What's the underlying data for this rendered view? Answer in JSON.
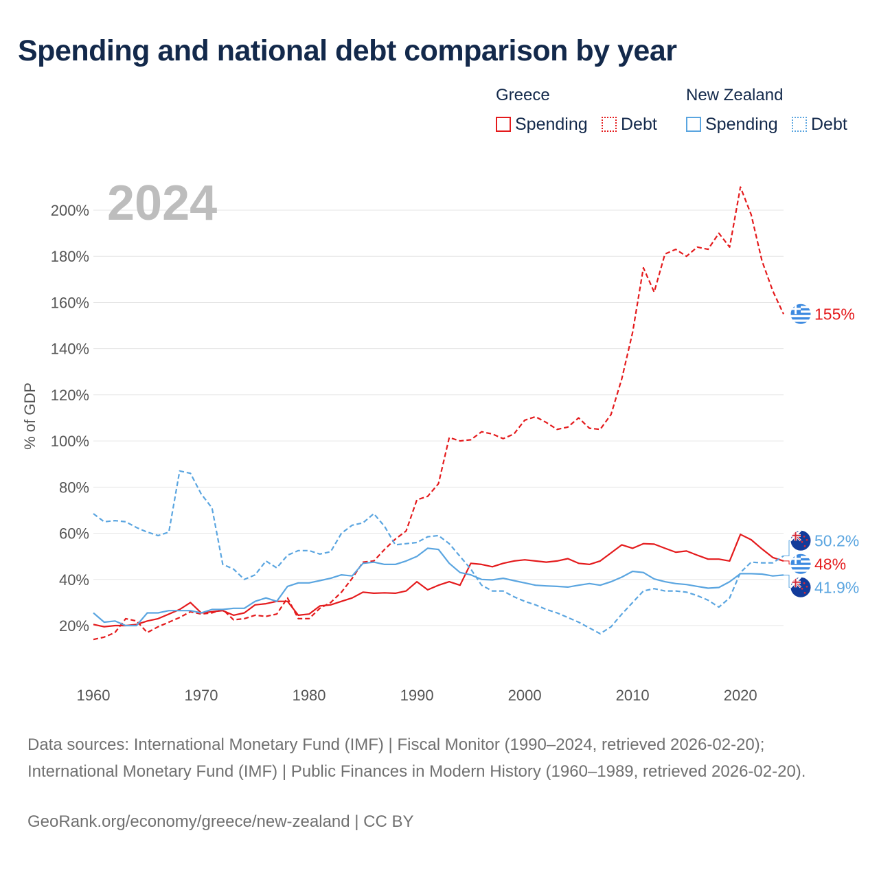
{
  "title": "Spending and national debt comparison by year",
  "legend": {
    "groups": [
      {
        "name": "Greece",
        "color": "#e41a1c",
        "items": [
          "Spending",
          "Debt"
        ]
      },
      {
        "name": "New Zealand",
        "color": "#5aa5e0",
        "items": [
          "Spending",
          "Debt"
        ]
      }
    ]
  },
  "year_label": "2024",
  "source": "Data sources: International Monetary Fund (IMF) | Fiscal Monitor (1990–2024, retrieved 2026-02-20); International Monetary Fund (IMF) | Public Finances in Modern History (1960–1989, retrieved 2026-02-20).",
  "credit": "GeoRank.org/economy/greece/new-zealand | CC BY",
  "chart_data": {
    "type": "line",
    "title": "Spending and national debt comparison by year",
    "xlabel": "",
    "ylabel": "% of GDP",
    "xlim": [
      1960,
      2024
    ],
    "ylim": [
      0,
      210
    ],
    "x_ticks": [
      1960,
      1970,
      1980,
      1990,
      2000,
      2010,
      2020
    ],
    "y_ticks": [
      20,
      40,
      60,
      80,
      100,
      120,
      140,
      160,
      180,
      200
    ],
    "y_tick_suffix": "%",
    "grid": true,
    "legend_position": "top-right",
    "x": [
      1960,
      1961,
      1962,
      1963,
      1964,
      1965,
      1966,
      1967,
      1968,
      1969,
      1970,
      1971,
      1972,
      1973,
      1974,
      1975,
      1976,
      1977,
      1978,
      1979,
      1980,
      1981,
      1982,
      1983,
      1984,
      1985,
      1986,
      1987,
      1988,
      1989,
      1990,
      1991,
      1992,
      1993,
      1994,
      1995,
      1996,
      1997,
      1998,
      1999,
      2000,
      2001,
      2002,
      2003,
      2004,
      2005,
      2006,
      2007,
      2008,
      2009,
      2010,
      2011,
      2012,
      2013,
      2014,
      2015,
      2016,
      2017,
      2018,
      2019,
      2020,
      2021,
      2022,
      2023,
      2024
    ],
    "series": [
      {
        "name": "Greece Spending",
        "country": "Greece",
        "style": "solid",
        "color": "#e41a1c",
        "values": [
          20.5,
          19.5,
          20,
          20,
          20.5,
          22,
          23,
          25,
          27,
          30,
          25.5,
          26,
          26.5,
          24.5,
          25.5,
          29,
          29.5,
          30.5,
          30.5,
          24.5,
          25,
          28.5,
          29,
          30.5,
          32,
          34.5,
          34,
          34.2,
          34,
          35,
          39,
          35.5,
          37.5,
          39,
          37.5,
          47,
          46.5,
          45.5,
          47,
          48,
          48.5,
          48,
          47.5,
          48,
          49,
          47,
          46.5,
          48,
          51.5,
          55,
          53.5,
          55.5,
          55.3,
          53.5,
          51.8,
          52.3,
          50.5,
          48.8,
          48.8,
          48,
          59.5,
          57.2,
          53.2,
          49.5,
          48
        ]
      },
      {
        "name": "Greece Debt",
        "country": "Greece",
        "style": "dashed",
        "color": "#e41a1c",
        "values": [
          14,
          15,
          17,
          23,
          22,
          17,
          19.5,
          21.5,
          23.5,
          26,
          25,
          25.5,
          27,
          22.5,
          23,
          24.5,
          24,
          25,
          32,
          23,
          23,
          27.5,
          30,
          34.5,
          40.5,
          47.5,
          48,
          53,
          57.5,
          61,
          74.5,
          76,
          81.5,
          101.5,
          100,
          100.5,
          104,
          103,
          101,
          103,
          109,
          110.5,
          108,
          105,
          106,
          110,
          105.5,
          105,
          111.5,
          127,
          147,
          175,
          164.5,
          181,
          183,
          180,
          184,
          183,
          190,
          184,
          210,
          198,
          178,
          165,
          155
        ]
      },
      {
        "name": "New Zealand Spending",
        "country": "New Zealand",
        "style": "solid",
        "color": "#5aa5e0",
        "values": [
          25.5,
          21.5,
          22,
          20,
          20,
          25.5,
          25.5,
          26.5,
          26.5,
          26.5,
          25.5,
          27,
          27,
          27.5,
          27.5,
          30.5,
          32,
          30.5,
          37,
          38.5,
          38.5,
          39.5,
          40.5,
          42,
          41.5,
          47,
          47.5,
          46.5,
          46.5,
          48,
          50,
          53.5,
          53,
          47,
          43,
          42,
          40,
          39.8,
          40.5,
          39.5,
          38.5,
          37.5,
          37.2,
          37,
          36.7,
          37.5,
          38.2,
          37.5,
          39,
          41,
          43.5,
          43,
          40.2,
          39,
          38.2,
          37.8,
          37,
          36.2,
          36.5,
          39,
          42.5,
          42.5,
          42.3,
          41.5,
          41.9
        ]
      },
      {
        "name": "New Zealand Debt",
        "country": "New Zealand",
        "style": "dashed",
        "color": "#5aa5e0",
        "values": [
          68.5,
          65,
          65.5,
          65,
          62.5,
          60.5,
          59,
          60.5,
          87,
          86,
          77,
          71,
          46.5,
          44.5,
          40,
          42,
          48,
          45,
          50.5,
          52.5,
          52.5,
          51,
          52,
          60,
          63.5,
          64.5,
          68.5,
          63,
          55,
          55.5,
          56,
          58.5,
          59,
          55.5,
          50,
          44.5,
          37.5,
          35,
          35,
          32.5,
          30.5,
          29,
          27,
          25.5,
          23.5,
          21.5,
          19,
          16.5,
          19.5,
          25,
          30,
          35,
          36,
          35,
          35,
          34.5,
          33,
          31,
          28,
          32,
          43,
          47.5,
          47.2,
          47.2,
          50.2
        ]
      }
    ],
    "end_labels": [
      {
        "series": "Greece Debt",
        "text": "155%",
        "flag": "greece"
      },
      {
        "series": "New Zealand Debt",
        "text": "50.2%",
        "flag": "new-zealand"
      },
      {
        "series": "Greece Spending",
        "text": "48%",
        "flag": "greece"
      },
      {
        "series": "New Zealand Spending",
        "text": "41.9%",
        "flag": "new-zealand"
      }
    ]
  }
}
